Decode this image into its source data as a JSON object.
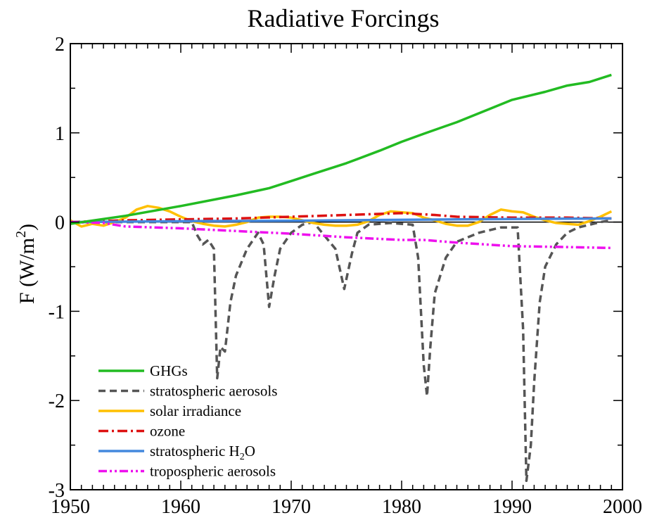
{
  "chart_data": {
    "type": "line",
    "title": "Radiative Forcings",
    "ylabel": {
      "prefix": "F (W/m",
      "sup": "2",
      "suffix": ")"
    },
    "xlabel": "",
    "xlim": [
      1950,
      2000
    ],
    "ylim": [
      -3,
      2
    ],
    "xticks": [
      "1950",
      "1960",
      "1970",
      "1980",
      "1990",
      "2000"
    ],
    "yticks": [
      "2",
      "1",
      "0",
      "-1",
      "-2",
      "-3"
    ],
    "grid": false,
    "legend_position": "bottom-left",
    "series": [
      {
        "name": "GHGs",
        "legend": {
          "text": "GHGs"
        },
        "color": "#22bb22",
        "dash": "solid",
        "points": [
          [
            1950,
            -0.02
          ],
          [
            1955,
            0.07
          ],
          [
            1960,
            0.18
          ],
          [
            1965,
            0.3
          ],
          [
            1968,
            0.38
          ],
          [
            1970,
            0.46
          ],
          [
            1972,
            0.54
          ],
          [
            1975,
            0.66
          ],
          [
            1978,
            0.8
          ],
          [
            1980,
            0.9
          ],
          [
            1982,
            0.99
          ],
          [
            1985,
            1.12
          ],
          [
            1988,
            1.27
          ],
          [
            1990,
            1.37
          ],
          [
            1993,
            1.46
          ],
          [
            1995,
            1.53
          ],
          [
            1997,
            1.57
          ],
          [
            1999,
            1.65
          ]
        ]
      },
      {
        "name": "stratospheric aerosols",
        "legend": {
          "text": "stratospheric aerosols"
        },
        "color": "#555555",
        "dash": "dashed",
        "points": [
          [
            1950,
            0.0
          ],
          [
            1961,
            0.0
          ],
          [
            1961.5,
            -0.15
          ],
          [
            1962,
            -0.25
          ],
          [
            1962.5,
            -0.2
          ],
          [
            1963,
            -0.3
          ],
          [
            1963.3,
            -1.75
          ],
          [
            1963.6,
            -1.4
          ],
          [
            1964,
            -1.45
          ],
          [
            1964.5,
            -0.9
          ],
          [
            1965,
            -0.6
          ],
          [
            1966,
            -0.3
          ],
          [
            1967,
            -0.12
          ],
          [
            1967.5,
            -0.25
          ],
          [
            1968,
            -0.95
          ],
          [
            1968.5,
            -0.6
          ],
          [
            1969,
            -0.3
          ],
          [
            1970,
            -0.12
          ],
          [
            1971,
            -0.03
          ],
          [
            1972,
            0.0
          ],
          [
            1974,
            -0.3
          ],
          [
            1974.8,
            -0.75
          ],
          [
            1975.5,
            -0.35
          ],
          [
            1976,
            -0.12
          ],
          [
            1977,
            -0.03
          ],
          [
            1979,
            -0.01
          ],
          [
            1981,
            -0.03
          ],
          [
            1981.5,
            -0.4
          ],
          [
            1982,
            -1.6
          ],
          [
            1982.3,
            -1.95
          ],
          [
            1982.6,
            -1.4
          ],
          [
            1983,
            -0.8
          ],
          [
            1984,
            -0.4
          ],
          [
            1985,
            -0.22
          ],
          [
            1987,
            -0.12
          ],
          [
            1989,
            -0.06
          ],
          [
            1990.5,
            -0.06
          ],
          [
            1991,
            -1.2
          ],
          [
            1991.3,
            -2.9
          ],
          [
            1991.7,
            -2.5
          ],
          [
            1992,
            -1.8
          ],
          [
            1992.5,
            -0.9
          ],
          [
            1993,
            -0.5
          ],
          [
            1994,
            -0.25
          ],
          [
            1995,
            -0.12
          ],
          [
            1996,
            -0.06
          ],
          [
            1998,
            0.0
          ],
          [
            1999,
            0.02
          ]
        ]
      },
      {
        "name": "solar irradiance",
        "legend": {
          "text": "solar irradiance"
        },
        "color": "#ffc000",
        "dash": "solid",
        "points": [
          [
            1950,
            0.02
          ],
          [
            1951,
            -0.05
          ],
          [
            1952,
            -0.02
          ],
          [
            1953,
            -0.04
          ],
          [
            1954,
            0.0
          ],
          [
            1955,
            0.05
          ],
          [
            1956,
            0.14
          ],
          [
            1957,
            0.18
          ],
          [
            1958,
            0.16
          ],
          [
            1959,
            0.12
          ],
          [
            1960,
            0.06
          ],
          [
            1961,
            0.01
          ],
          [
            1962,
            -0.02
          ],
          [
            1963,
            -0.04
          ],
          [
            1964,
            -0.05
          ],
          [
            1965,
            -0.03
          ],
          [
            1966,
            0.0
          ],
          [
            1967,
            0.05
          ],
          [
            1968,
            0.06
          ],
          [
            1969,
            0.06
          ],
          [
            1970,
            0.05
          ],
          [
            1971,
            0.02
          ],
          [
            1972,
            -0.01
          ],
          [
            1973,
            -0.03
          ],
          [
            1974,
            -0.04
          ],
          [
            1975,
            -0.04
          ],
          [
            1976,
            -0.03
          ],
          [
            1977,
            0.01
          ],
          [
            1978,
            0.08
          ],
          [
            1979,
            0.12
          ],
          [
            1980,
            0.11
          ],
          [
            1981,
            0.1
          ],
          [
            1982,
            0.05
          ],
          [
            1983,
            0.02
          ],
          [
            1984,
            -0.02
          ],
          [
            1985,
            -0.04
          ],
          [
            1986,
            -0.04
          ],
          [
            1987,
            0.0
          ],
          [
            1988,
            0.08
          ],
          [
            1989,
            0.14
          ],
          [
            1990,
            0.12
          ],
          [
            1991,
            0.11
          ],
          [
            1992,
            0.06
          ],
          [
            1993,
            0.02
          ],
          [
            1994,
            -0.01
          ],
          [
            1995,
            -0.02
          ],
          [
            1996,
            -0.03
          ],
          [
            1997,
            0.01
          ],
          [
            1998,
            0.06
          ],
          [
            1999,
            0.12
          ]
        ]
      },
      {
        "name": "ozone",
        "legend": {
          "text": "ozone"
        },
        "color": "#dd1111",
        "dash": "dashdot",
        "points": [
          [
            1950,
            0.0
          ],
          [
            1955,
            0.02
          ],
          [
            1960,
            0.03
          ],
          [
            1965,
            0.04
          ],
          [
            1970,
            0.06
          ],
          [
            1975,
            0.08
          ],
          [
            1980,
            0.1
          ],
          [
            1983,
            0.08
          ],
          [
            1985,
            0.06
          ],
          [
            1990,
            0.05
          ],
          [
            1995,
            0.05
          ],
          [
            1999,
            0.04
          ]
        ]
      },
      {
        "name": "stratospheric H2O",
        "legend": {
          "text": "stratospheric H",
          "sub": "2",
          "tail": "O"
        },
        "color": "#4488dd",
        "dash": "solid",
        "points": [
          [
            1950,
            0.0
          ],
          [
            1960,
            0.01
          ],
          [
            1970,
            0.015
          ],
          [
            1980,
            0.025
          ],
          [
            1990,
            0.035
          ],
          [
            1999,
            0.04
          ]
        ]
      },
      {
        "name": "tropospheric aerosols",
        "legend": {
          "text": "tropospheric aerosols"
        },
        "color": "#ee11ee",
        "dash": "dashdotdot",
        "points": [
          [
            1950,
            0.0
          ],
          [
            1953,
            -0.01
          ],
          [
            1955,
            -0.05
          ],
          [
            1960,
            -0.07
          ],
          [
            1965,
            -0.1
          ],
          [
            1970,
            -0.13
          ],
          [
            1975,
            -0.17
          ],
          [
            1980,
            -0.2
          ],
          [
            1982,
            -0.2
          ],
          [
            1985,
            -0.23
          ],
          [
            1990,
            -0.27
          ],
          [
            1995,
            -0.28
          ],
          [
            1999,
            -0.29
          ]
        ]
      }
    ]
  }
}
